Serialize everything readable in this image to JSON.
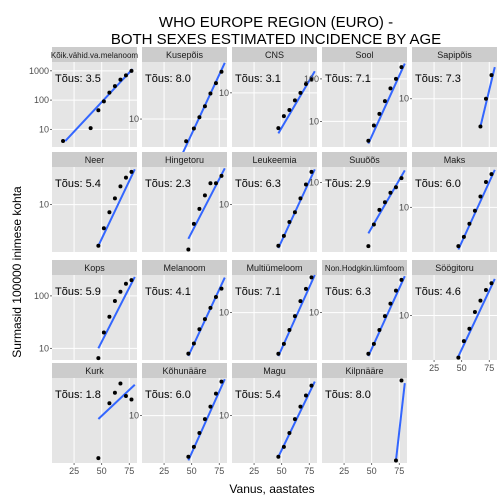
{
  "chart_data": {
    "type": "scatter",
    "title_lines": [
      "WHO EUROPE REGION (EURO) -",
      "BOTH SEXES ESTIMATED INCIDENCE BY AGE"
    ],
    "xlabel": "Vanus, aastates",
    "ylabel": "Surmasid 100000 inimese kohta",
    "x_ticks": [
      25,
      50,
      75
    ],
    "xlim": [
      5,
      82
    ],
    "y_scale": "log",
    "slope_label_prefix": "Tõus: ",
    "grid": true,
    "fit_line_color": "#3366FF",
    "panel_background": "#E5E5E5",
    "strip_background": "#CCCCCC",
    "panels": [
      {
        "name": "Kõik.vähid.va.melanoom",
        "slope": "3.5",
        "ylim": [
          2.5,
          2000
        ],
        "yticks": [
          10,
          100,
          1000
        ],
        "x": [
          15,
          40,
          47,
          52,
          57,
          62,
          67,
          72,
          77
        ],
        "y": [
          4,
          11,
          45,
          90,
          180,
          300,
          500,
          700,
          1000
        ],
        "fit": [
          [
            17,
            4
          ],
          [
            78,
            1150
          ]
        ]
      },
      {
        "name": "Kusepõis",
        "slope": "8.0",
        "ylim": [
          2.2,
          220
        ],
        "yticks": [
          10
        ],
        "x": [
          45,
          52,
          57,
          62,
          67,
          72,
          77
        ],
        "y": [
          3,
          6,
          11,
          20,
          40,
          70,
          130
        ],
        "fit": [
          [
            42,
            1.6
          ],
          [
            80,
            210
          ]
        ]
      },
      {
        "name": "CNS",
        "slope": "3.1",
        "ylim": [
          2,
          25
        ],
        "yticks": [
          10
        ],
        "x": [
          47,
          52,
          57,
          62,
          67,
          72,
          77
        ],
        "y": [
          3.5,
          5,
          6,
          8,
          10,
          13,
          15
        ],
        "fit": [
          [
            47,
            3
          ],
          [
            80,
            19
          ]
        ]
      },
      {
        "name": "Sool",
        "slope": "7.1",
        "ylim": [
          2.5,
          250
        ],
        "yticks": [
          10,
          100
        ],
        "x": [
          47,
          52,
          57,
          62,
          67,
          72,
          77
        ],
        "y": [
          3.5,
          8,
          15,
          30,
          60,
          100,
          190
        ],
        "fit": [
          [
            47,
            3
          ],
          [
            80,
            230
          ]
        ]
      },
      {
        "name": "Sapipõis",
        "slope": "7.3",
        "ylim": [
          3,
          25
        ],
        "yticks": [
          10
        ],
        "x": [
          67,
          72,
          77
        ],
        "y": [
          5,
          10,
          18
        ],
        "fit": [
          [
            67,
            5
          ],
          [
            80,
            22
          ]
        ]
      },
      {
        "name": "Neer",
        "slope": "5.4",
        "ylim": [
          2.5,
          30
        ],
        "yticks": [
          10
        ],
        "x": [
          47,
          52,
          57,
          62,
          67,
          72,
          77
        ],
        "y": [
          3,
          5,
          8,
          12,
          17,
          22,
          26
        ],
        "fit": [
          [
            47,
            3
          ],
          [
            80,
            28
          ]
        ]
      },
      {
        "name": "Hingetoru",
        "slope": "2.3",
        "ylim": [
          2.8,
          28
        ],
        "yticks": [],
        "x": [
          47,
          52,
          57,
          62,
          67,
          72,
          77
        ],
        "y": [
          3,
          6,
          9,
          13,
          18,
          18,
          22
        ],
        "fit": [
          [
            47,
            4
          ],
          [
            80,
            27
          ]
        ]
      },
      {
        "name": "Leukeemia",
        "slope": "6.3",
        "ylim": [
          2.5,
          30
        ],
        "yticks": [
          10
        ],
        "x": [
          47,
          52,
          57,
          62,
          67,
          72,
          77
        ],
        "y": [
          3,
          4,
          6,
          8,
          12,
          18,
          26
        ],
        "fit": [
          [
            47,
            2.8
          ],
          [
            80,
            28
          ]
        ]
      },
      {
        "name": "Suuõõs",
        "slope": "2.9",
        "ylim": [
          2.2,
          14
        ],
        "yticks": [
          10
        ],
        "x": [
          47,
          52,
          57,
          62,
          67,
          72,
          77
        ],
        "y": [
          2.5,
          4,
          5.5,
          6.5,
          8,
          9,
          11
        ],
        "fit": [
          [
            47,
            3.3
          ],
          [
            80,
            13
          ]
        ]
      },
      {
        "name": "Maks",
        "slope": "6.0",
        "ylim": [
          2.5,
          35
        ],
        "yticks": [
          10
        ],
        "x": [
          47,
          52,
          57,
          62,
          67,
          72,
          77
        ],
        "y": [
          3,
          4,
          6,
          9,
          14,
          22,
          28
        ],
        "fit": [
          [
            47,
            2.7
          ],
          [
            80,
            32
          ]
        ]
      },
      {
        "name": "Kops",
        "slope": "5.9",
        "ylim": [
          6,
          250
        ],
        "yticks": [
          10,
          100
        ],
        "x": [
          47,
          52,
          57,
          62,
          67,
          72,
          77
        ],
        "y": [
          6.5,
          20,
          40,
          80,
          120,
          170,
          200
        ],
        "fit": [
          [
            47,
            10
          ],
          [
            80,
            230
          ]
        ]
      },
      {
        "name": "Melanoom",
        "slope": "4.1",
        "ylim": [
          2.5,
          28
        ],
        "yticks": [],
        "x": [
          47,
          52,
          57,
          62,
          67,
          72,
          77
        ],
        "y": [
          3,
          4,
          6,
          8,
          11,
          15,
          19
        ],
        "fit": [
          [
            47,
            2.8
          ],
          [
            80,
            26
          ]
        ]
      },
      {
        "name": "Multiümeloom",
        "slope": "7.1",
        "ylim": [
          2.5,
          30
        ],
        "yticks": [
          10
        ],
        "x": [
          47,
          52,
          57,
          62,
          67,
          72,
          77
        ],
        "y": [
          3,
          4,
          6,
          9,
          14,
          20,
          28
        ],
        "fit": [
          [
            47,
            2.8
          ],
          [
            80,
            30
          ]
        ]
      },
      {
        "name": "Non.Hodgkin.lümfoom",
        "slope": "6.3",
        "ylim": [
          2.5,
          30
        ],
        "yticks": [
          10
        ],
        "x": [
          47,
          52,
          57,
          62,
          67,
          72,
          77
        ],
        "y": [
          3,
          4,
          6,
          9,
          13,
          19,
          26
        ],
        "fit": [
          [
            47,
            2.8
          ],
          [
            80,
            29
          ]
        ]
      },
      {
        "name": "Söögitoru",
        "slope": "4.6",
        "ylim": [
          3,
          30
        ],
        "yticks": [
          10
        ],
        "x": [
          47,
          52,
          57,
          62,
          67,
          72,
          77
        ],
        "y": [
          3.2,
          5,
          7,
          11,
          15,
          20,
          24
        ],
        "fit": [
          [
            47,
            3.3
          ],
          [
            80,
            27
          ]
        ]
      },
      {
        "name": "Kurk",
        "slope": "1.8",
        "ylim": [
          4.5,
          14
        ],
        "yticks": [],
        "x": [
          47,
          57,
          62,
          67,
          72,
          77
        ],
        "y": [
          4.8,
          10,
          11.5,
          13,
          11,
          10.5
        ],
        "fit": [
          [
            47,
            8.1
          ],
          [
            80,
            12.8
          ]
        ]
      },
      {
        "name": "Kõhunääre",
        "slope": "6.0",
        "ylim": [
          2.5,
          30
        ],
        "yticks": [
          10
        ],
        "x": [
          47,
          52,
          57,
          62,
          67,
          72,
          77
        ],
        "y": [
          3,
          4,
          6,
          9,
          13,
          19,
          27
        ],
        "fit": [
          [
            47,
            2.7
          ],
          [
            80,
            29
          ]
        ]
      },
      {
        "name": "Magu",
        "slope": "5.4",
        "ylim": [
          2.5,
          30
        ],
        "yticks": [
          10
        ],
        "x": [
          47,
          52,
          57,
          62,
          67,
          72,
          77
        ],
        "y": [
          3,
          4,
          6,
          9,
          13,
          18,
          24
        ],
        "fit": [
          [
            47,
            3
          ],
          [
            80,
            27
          ]
        ]
      },
      {
        "name": "Kilpnääre",
        "slope": "8.0",
        "ylim": [
          2.8,
          30
        ],
        "yticks": [],
        "x": [
          72,
          77
        ],
        "y": [
          3,
          28
        ],
        "fit": [
          [
            72,
            3
          ],
          [
            80,
            26
          ]
        ]
      }
    ]
  }
}
